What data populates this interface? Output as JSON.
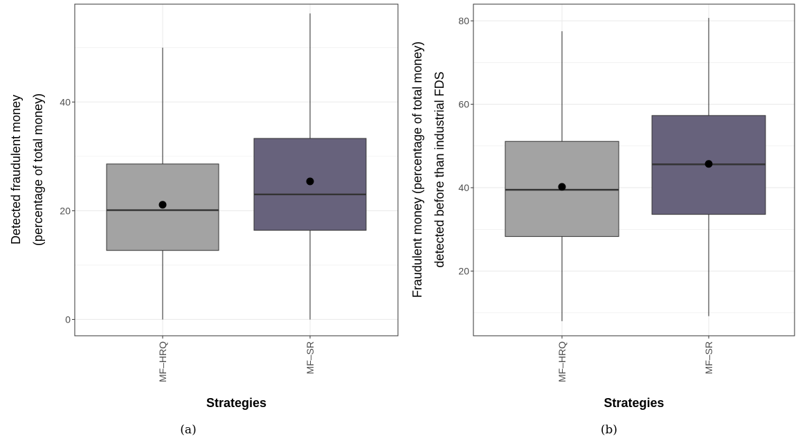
{
  "chart_data": [
    {
      "type": "box",
      "caption": "(a)",
      "xlabel": "Strategies",
      "ylabel": [
        "Detected fraudulent money",
        "(percentage of total money)"
      ],
      "ylim": [
        -3,
        58
      ],
      "yticks": [
        0,
        20,
        40
      ],
      "grid": true,
      "categories": [
        "MF–HRQ",
        "MF–SR"
      ],
      "boxes": [
        {
          "category": "MF–HRQ",
          "whisker_low": 0,
          "q1": 12.7,
          "median": 20.1,
          "q3": 28.6,
          "whisker_high": 50,
          "mean": 21.1,
          "color": "#a3a3a3"
        },
        {
          "category": "MF–SR",
          "whisker_low": 0,
          "q1": 16.4,
          "median": 23.0,
          "q3": 33.3,
          "whisker_high": 56.3,
          "mean": 25.4,
          "color": "#67627c"
        }
      ]
    },
    {
      "type": "box",
      "caption": "(b)",
      "xlabel": "Strategies",
      "ylabel": [
        "Fraudulent money (percentage of total money)",
        "detected before than industrial FDS"
      ],
      "ylim": [
        4.5,
        84
      ],
      "yticks": [
        20,
        40,
        60,
        80
      ],
      "grid": true,
      "categories": [
        "MF–HRQ",
        "MF–SR"
      ],
      "boxes": [
        {
          "category": "MF–HRQ",
          "whisker_low": 8,
          "q1": 28.3,
          "median": 39.5,
          "q3": 51.1,
          "whisker_high": 77.5,
          "mean": 40.2,
          "color": "#a3a3a3"
        },
        {
          "category": "MF–SR",
          "whisker_low": 9.2,
          "q1": 33.6,
          "median": 45.6,
          "q3": 57.3,
          "whisker_high": 80.7,
          "mean": 45.7,
          "color": "#67627c"
        }
      ]
    }
  ]
}
